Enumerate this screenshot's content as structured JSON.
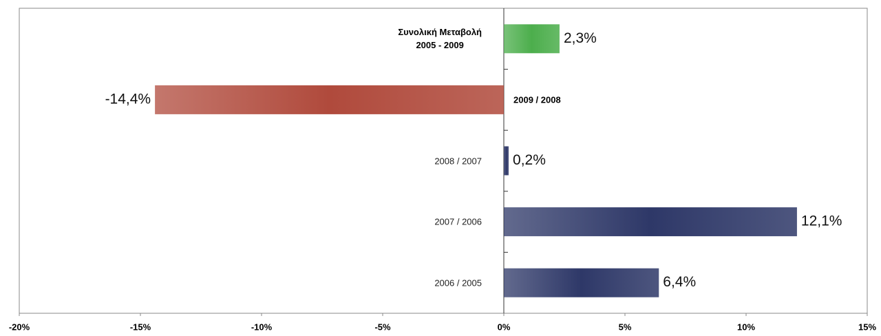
{
  "chart_data": {
    "type": "bar",
    "orientation": "horizontal",
    "categories": [
      "Συνολική Μεταβολή\n2005 - 2009",
      "2009 / 2008",
      "2008 / 2007",
      "2007 / 2006",
      "2006 / 2005"
    ],
    "values": [
      2.3,
      -14.4,
      0.2,
      12.1,
      6.4
    ],
    "value_labels": [
      "2,3%",
      "-14,4%",
      "0,2%",
      "12,1%",
      "6,4%"
    ],
    "colors": [
      "#4cae4c",
      "#b04a3c",
      "#2e3868",
      "#2e3868",
      "#2e3868"
    ],
    "xlim": [
      -20,
      15
    ],
    "xticks": [
      {
        "value": -20,
        "label": "-20%"
      },
      {
        "value": -15,
        "label": "-15%"
      },
      {
        "value": -10,
        "label": "-10%"
      },
      {
        "value": -5,
        "label": "-5%"
      },
      {
        "value": 0,
        "label": "0%"
      },
      {
        "value": 5,
        "label": "5%"
      },
      {
        "value": 10,
        "label": "10%"
      },
      {
        "value": 15,
        "label": "15%"
      }
    ]
  }
}
